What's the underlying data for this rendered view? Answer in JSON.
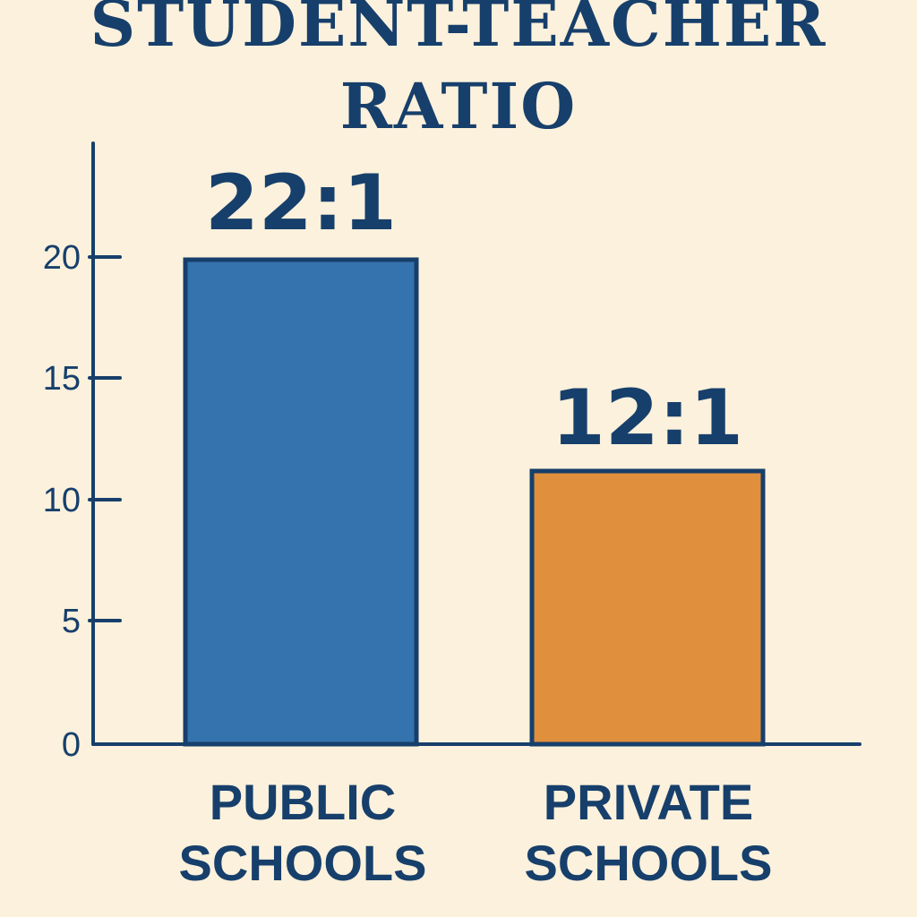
{
  "chart_data": {
    "type": "bar",
    "title": [
      "STUDENT-TEACHER",
      "RATIO"
    ],
    "categories": [
      [
        "PUBLIC",
        "SCHOOLS"
      ],
      [
        "PRIVATE",
        "SCHOOLS"
      ]
    ],
    "values": [
      22,
      12
    ],
    "data_labels": [
      "22:1",
      "12:1"
    ],
    "colors": [
      "#3473ad",
      "#e08f3c"
    ],
    "outline_color": "#173f6b",
    "yticks": [
      0,
      5,
      10,
      15,
      20
    ],
    "ylim": [
      0,
      24
    ],
    "grid": false,
    "legend": "none"
  }
}
